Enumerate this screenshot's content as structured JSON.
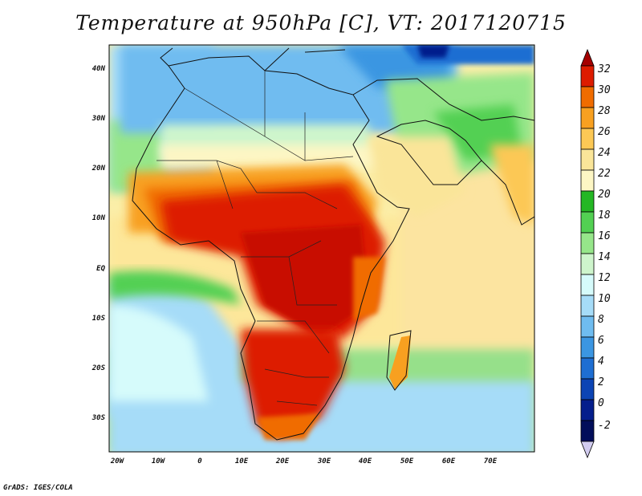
{
  "title": "Temperature at 950hPa [C], VT: 2017120715",
  "credit": "GrADS: IGES/COLA",
  "map": {
    "projection": "lat-lon",
    "lon_range": [
      -23,
      80
    ],
    "lat_range": [
      -37,
      45
    ],
    "grid": false,
    "region": "Africa, Arabia, Indian Ocean",
    "lat_ticks": [
      "40N",
      "30N",
      "20N",
      "10N",
      "EQ",
      "10S",
      "20S",
      "30S"
    ],
    "lon_ticks": [
      "20W",
      "10W",
      "0",
      "10E",
      "20E",
      "30E",
      "40E",
      "50E",
      "60E",
      "70E"
    ]
  },
  "colorbar": {
    "labels": [
      "32",
      "30",
      "28",
      "26",
      "24",
      "22",
      "20",
      "18",
      "16",
      "14",
      "12",
      "10",
      "8",
      "6",
      "4",
      "2",
      "0",
      "-2"
    ],
    "colors": [
      "#a50000",
      "#dd1c00",
      "#f06c00",
      "#f8a020",
      "#fcc855",
      "#fae599",
      "#fdf6c4",
      "#24b724",
      "#52d052",
      "#96e68a",
      "#cef5cc",
      "#d6fbfb",
      "#a6dcf8",
      "#6fbcf0",
      "#3b96e2",
      "#1e6ed2",
      "#0c44b4",
      "#041e8c",
      "#020e5a",
      "#d2ccf0"
    ]
  }
}
